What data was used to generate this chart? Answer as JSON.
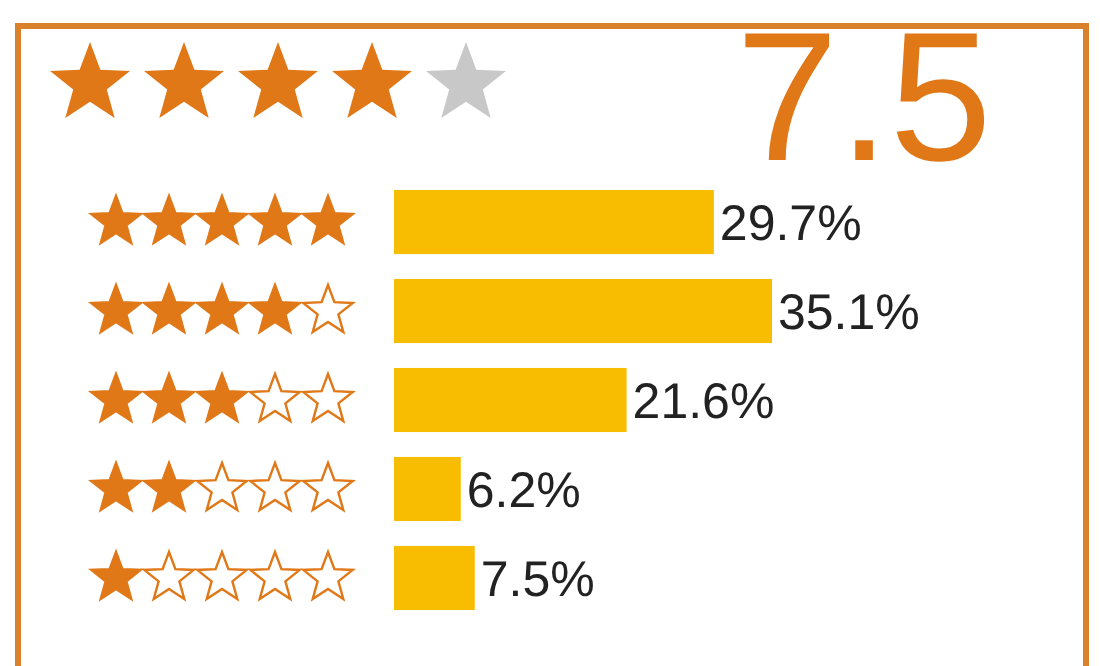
{
  "chart_data": {
    "type": "bar",
    "orientation": "horizontal",
    "title": "7.5",
    "categories": [
      null,
      null,
      null,
      null,
      null
    ],
    "values": [
      29.7,
      35.1,
      21.6,
      6.2,
      7.5
    ],
    "value_labels": [
      "29.7%",
      "35.1%",
      "21.6%",
      "6.2%",
      "7.5%"
    ],
    "color": "#f8bd00"
  }
}
